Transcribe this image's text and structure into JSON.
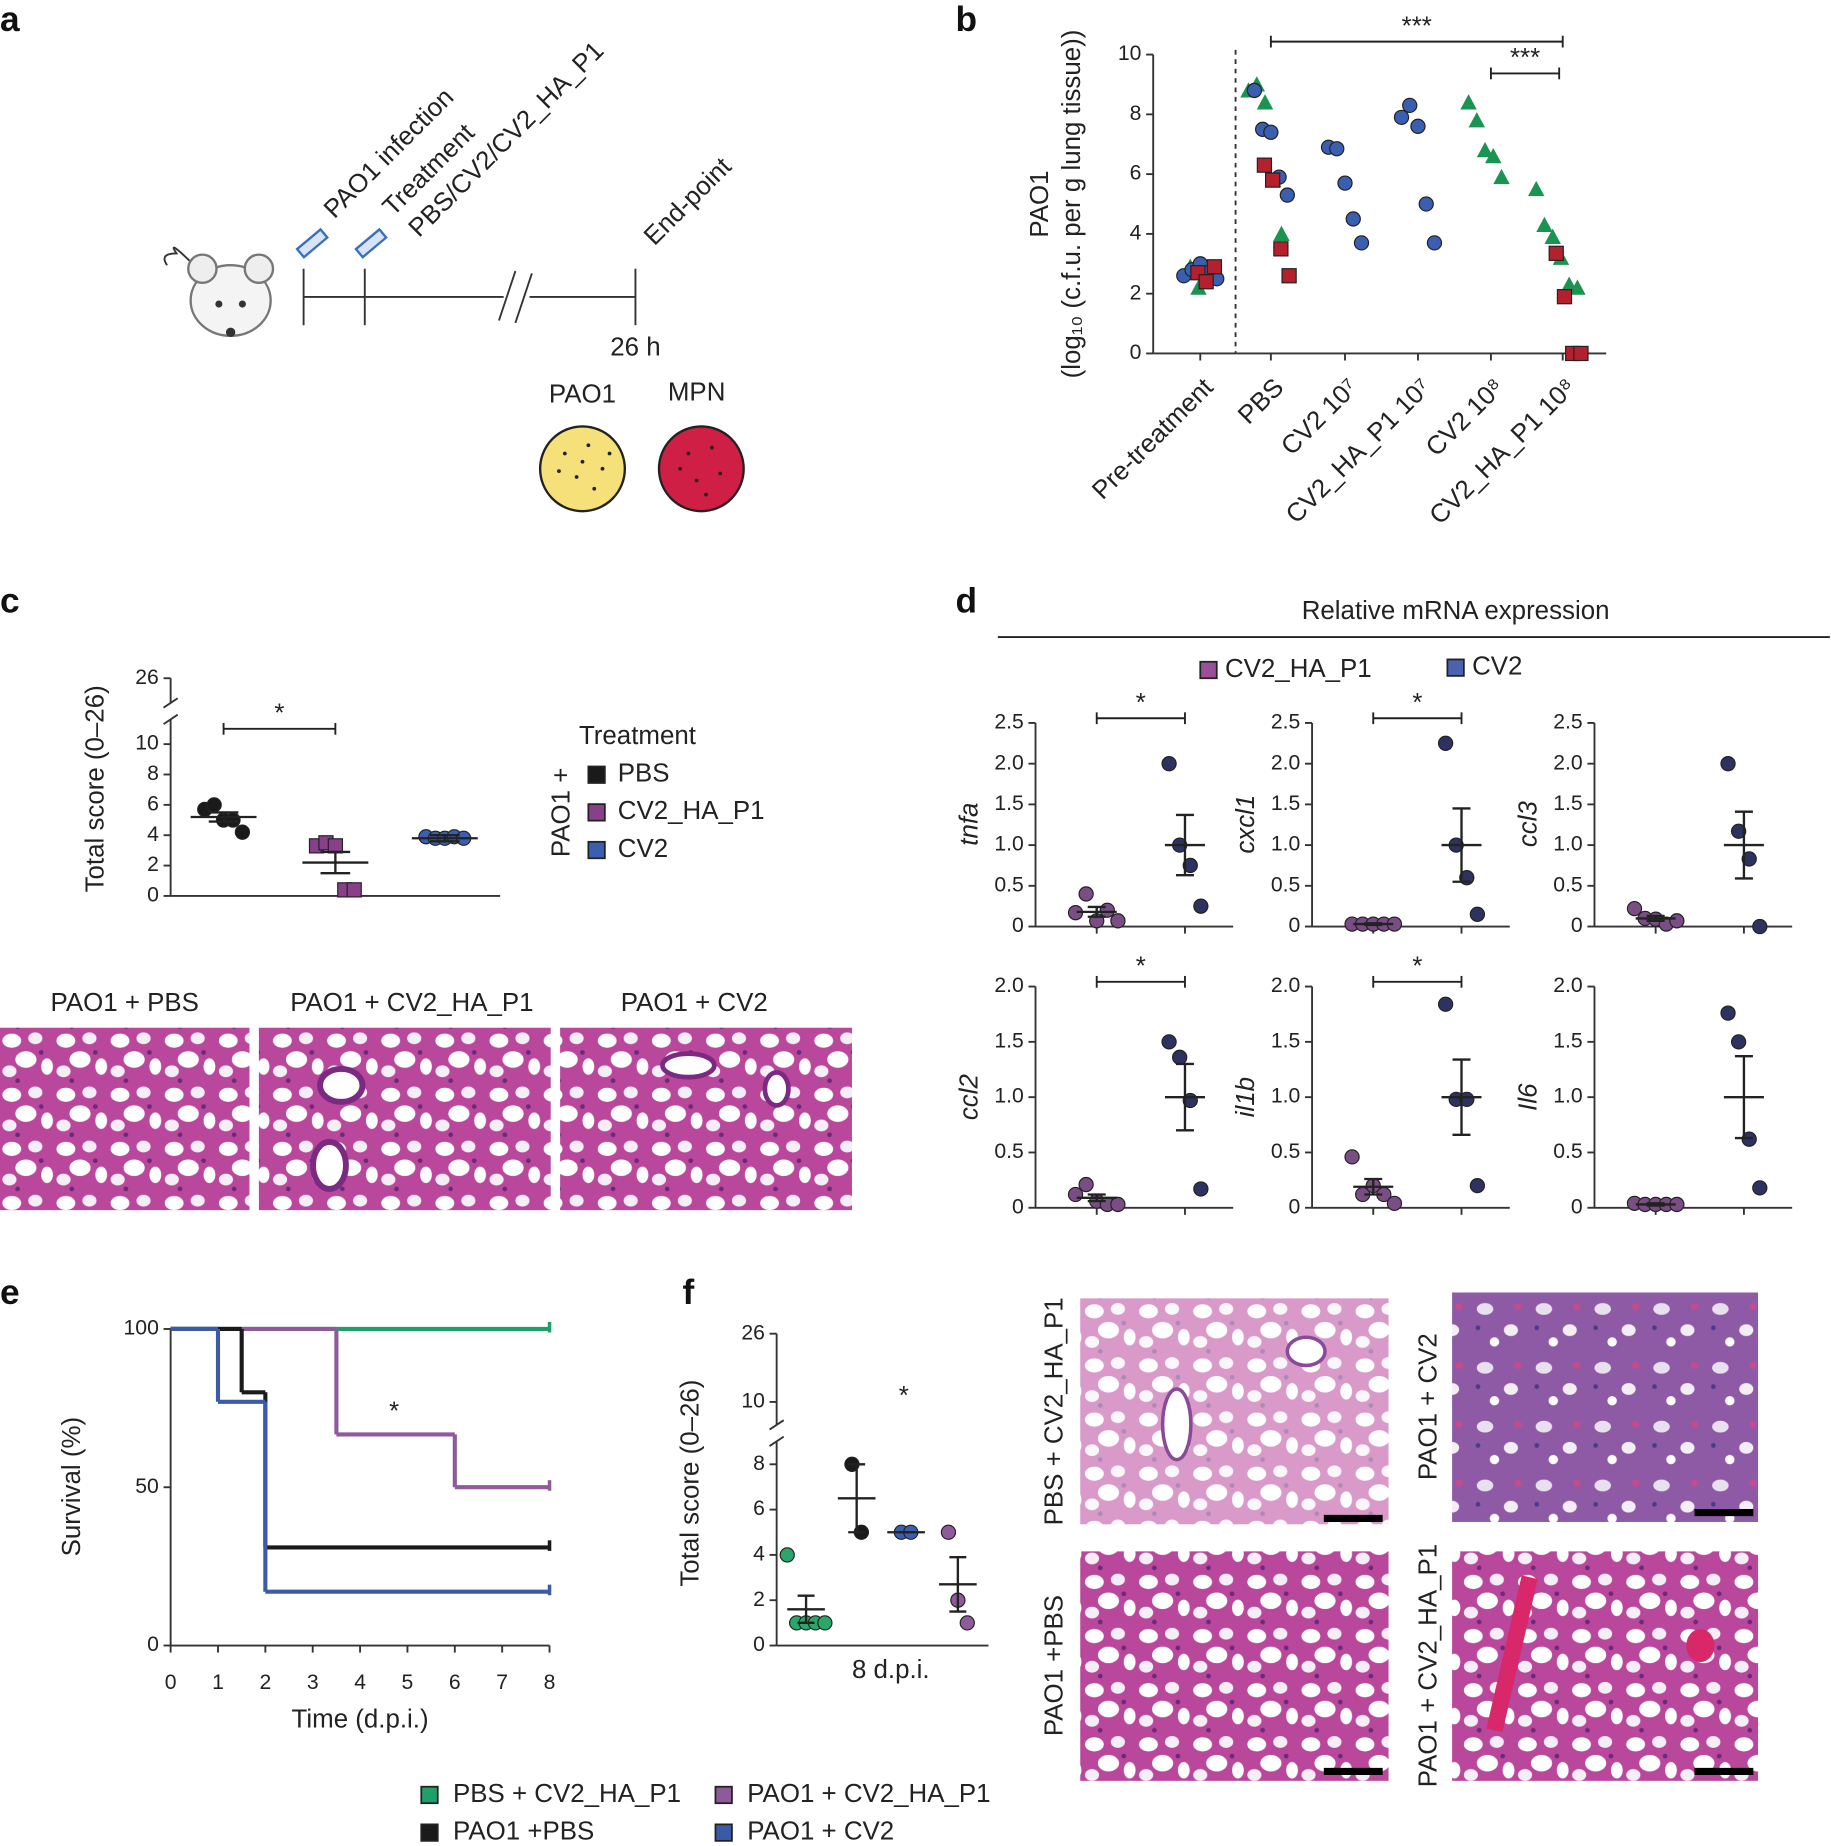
{
  "panel_labels": [
    "a",
    "b",
    "c",
    "d",
    "e",
    "f"
  ],
  "diagram": {
    "steps": [
      "PAO1 infection",
      "Treatment",
      "PBS/CV2/CV2_HA_P1",
      "End-point"
    ],
    "time": "26 h",
    "plates": [
      "PAO1",
      "MPN"
    ]
  },
  "micrographs_c": [
    "PAO1 + PBS",
    "PAO1 + CV2_HA_P1",
    "PAO1 + CV2"
  ],
  "micrographs_f": [
    "PBS + CV2_HA_P1",
    "PAO1 + CV2",
    "PAO1 +PBS",
    "PAO1 + CV2_HA_P1"
  ],
  "panel_d": {
    "title": "Relative mRNA expression",
    "legend": [
      {
        "name": "CV2_HA_P1",
        "color": "#9b4f96"
      },
      {
        "name": "CV2",
        "color": "#4b62ad"
      }
    ]
  },
  "chart_data": [
    {
      "type": "strip",
      "ylabel": [
        "PAO1",
        "(log₁₀ (c.f.u. per g lung tissue))"
      ],
      "categories": [
        "Pre-treatment",
        "PBS",
        "CV2 10⁷",
        "CV2_HA_P1 10⁷",
        "CV2 10⁸",
        "CV2_HA_P1 10⁸"
      ],
      "ylim": [
        0,
        10
      ],
      "yticks": [
        0,
        2,
        4,
        6,
        8,
        10
      ],
      "series": [
        {
          "color": "#1a9450",
          "marker": "triangle",
          "values": [
            [
              2.9,
              2.2
            ],
            [
              8.8,
              9.0,
              8.4,
              5.8,
              4.0
            ],
            [],
            [],
            [
              8.4,
              7.8,
              6.8,
              6.6,
              5.9
            ],
            [
              5.5,
              4.3,
              3.9,
              3.2,
              2.3,
              2.2
            ]
          ]
        },
        {
          "color": "#3a5fb0",
          "marker": "circle",
          "values": [
            [
              2.6,
              2.8,
              3.0,
              2.7,
              2.5
            ],
            [
              8.8,
              7.5,
              7.4,
              5.9,
              5.3
            ],
            [
              6.9,
              6.85,
              5.7,
              4.5,
              3.7
            ],
            [
              7.9,
              8.3,
              7.6,
              5.0,
              3.7
            ],
            [],
            []
          ]
        },
        {
          "color": "#b5202e",
          "marker": "square",
          "values": [
            [
              2.7,
              2.4,
              2.9
            ],
            [
              6.3,
              5.8,
              3.5,
              2.6
            ],
            [],
            [],
            [],
            [
              3.35,
              1.9,
              0,
              0
            ]
          ]
        }
      ],
      "annotations": [
        "***",
        "***"
      ]
    },
    {
      "type": "dot",
      "ylabel": "Total score (0–26)",
      "ylim": [
        0,
        26
      ],
      "axis_break": [
        10,
        26
      ],
      "yticks": [
        0,
        2,
        4,
        6,
        8,
        10,
        26
      ],
      "legend_title": "Treatment",
      "legend_prefix": "PAO1 +",
      "series": [
        {
          "name": "PBS",
          "color": "#1a1a1a",
          "marker": "circle",
          "values": [
            5.7,
            6.0,
            5.0,
            5.0,
            4.2
          ],
          "mean": 5.2,
          "sem": 0.3
        },
        {
          "name": "CV2_HA_P1",
          "color": "#8a3f8a",
          "marker": "square",
          "values": [
            3.3,
            3.5,
            3.3,
            0.4,
            0.4
          ],
          "mean": 2.2,
          "sem": 0.7
        },
        {
          "name": "CV2",
          "color": "#3a5fb0",
          "marker": "circle",
          "values": [
            3.9,
            3.8,
            3.8,
            3.9,
            3.8
          ],
          "mean": 3.8,
          "sem": 0.2
        }
      ],
      "annotations": [
        "*"
      ]
    },
    {
      "type": "dot",
      "ylabel": "tnfa",
      "ylim": [
        0,
        2.5
      ],
      "yticks": [
        0,
        0.5,
        {
          "value": 1,
          "label": "1.0"
        },
        1.5,
        {
          "value": 2,
          "label": "2.0"
        },
        2.5
      ],
      "series": [
        {
          "color": "#7a4e84",
          "marker": "circle",
          "values": [
            0.17,
            0.4,
            0.07,
            0.2,
            0.07
          ],
          "mean": 0.18,
          "sem": 0.06
        },
        {
          "color": "#2e3260",
          "marker": "circle",
          "values": [
            2.0,
            1.0,
            0.75,
            0.25
          ],
          "mean": 1.0,
          "sem": 0.37
        }
      ],
      "annotations": [
        "*"
      ]
    },
    {
      "type": "dot",
      "ylabel": "cxcl1",
      "ylim": [
        0,
        2.5
      ],
      "yticks": [
        0,
        0.5,
        {
          "value": 1,
          "label": "1.0"
        },
        1.5,
        {
          "value": 2,
          "label": "2.0"
        },
        2.5
      ],
      "series": [
        {
          "color": "#7a4e84",
          "marker": "circle",
          "values": [
            0.03,
            0.03,
            0.03,
            0.03,
            0.03
          ],
          "mean": 0.03,
          "sem": 0.01
        },
        {
          "color": "#2e3260",
          "marker": "circle",
          "values": [
            2.25,
            1.0,
            0.6,
            0.15
          ],
          "mean": 1.0,
          "sem": 0.45
        }
      ],
      "annotations": [
        "*"
      ]
    },
    {
      "type": "dot",
      "ylabel": "ccl3",
      "ylim": [
        0,
        2.5
      ],
      "yticks": [
        0,
        0.5,
        {
          "value": 1,
          "label": "1.0"
        },
        1.5,
        {
          "value": 2,
          "label": "2.0"
        },
        2.5
      ],
      "series": [
        {
          "color": "#7a4e84",
          "marker": "circle",
          "values": [
            0.22,
            0.1,
            0.09,
            0.03,
            0.07
          ],
          "mean": 0.1,
          "sem": 0.03
        },
        {
          "color": "#2e3260",
          "marker": "circle",
          "values": [
            2.0,
            1.17,
            0.83,
            0.0
          ],
          "mean": 1.0,
          "sem": 0.41
        }
      ]
    },
    {
      "type": "dot",
      "ylabel": "ccl2",
      "ylim": [
        0,
        2
      ],
      "yticks": [
        0,
        0.5,
        {
          "value": 1,
          "label": "1.0"
        },
        1.5,
        {
          "value": 2,
          "label": "2.0"
        }
      ],
      "series": [
        {
          "color": "#7a4e84",
          "marker": "circle",
          "values": [
            0.12,
            0.21,
            0.06,
            0.03,
            0.03
          ],
          "mean": 0.09,
          "sem": 0.03
        },
        {
          "color": "#2e3260",
          "marker": "circle",
          "values": [
            1.5,
            1.36,
            0.97,
            0.17
          ],
          "mean": 1.0,
          "sem": 0.3
        }
      ],
      "annotations": [
        "*"
      ]
    },
    {
      "type": "dot",
      "ylabel": "il1b",
      "ylim": [
        0,
        2
      ],
      "yticks": [
        0,
        0.5,
        {
          "value": 1,
          "label": "1.0"
        },
        1.5,
        {
          "value": 2,
          "label": "2.0"
        }
      ],
      "series": [
        {
          "color": "#7a4e84",
          "marker": "circle",
          "values": [
            0.46,
            0.12,
            0.2,
            0.12,
            0.04
          ],
          "mean": 0.19,
          "sem": 0.07
        },
        {
          "color": "#2e3260",
          "marker": "circle",
          "values": [
            1.84,
            0.98,
            0.98,
            0.2
          ],
          "mean": 1.0,
          "sem": 0.34
        }
      ],
      "annotations": [
        "*"
      ]
    },
    {
      "type": "dot",
      "ylabel": "Il6",
      "ylim": [
        0,
        2
      ],
      "yticks": [
        0,
        0.5,
        {
          "value": 1,
          "label": "1.0"
        },
        1.5,
        {
          "value": 2,
          "label": "2.0"
        }
      ],
      "series": [
        {
          "color": "#7a4e84",
          "marker": "circle",
          "values": [
            0.04,
            0.03,
            0.03,
            0.03,
            0.03
          ],
          "mean": 0.03,
          "sem": 0.01
        },
        {
          "color": "#2e3260",
          "marker": "circle",
          "values": [
            1.76,
            1.5,
            0.62,
            0.18
          ],
          "mean": 1.0,
          "sem": 0.37
        }
      ]
    },
    {
      "type": "step",
      "xlabel": "Time (d.p.i.)",
      "ylabel": "Survival (%)",
      "xlim": [
        0,
        8
      ],
      "xticks": [
        0,
        1,
        2,
        3,
        4,
        5,
        6,
        7,
        8
      ],
      "ylim": [
        0,
        100
      ],
      "yticks": [
        0,
        50,
        100
      ],
      "series": [
        {
          "name": "PBS + CV2_HA_P1",
          "color": "#1fa06a",
          "x": [
            0,
            8
          ],
          "values": [
            100,
            100
          ]
        },
        {
          "name": "PAO1 + CV2_HA_P1",
          "color": "#8e5a9c",
          "x": [
            0,
            3.5,
            6,
            8
          ],
          "values": [
            100,
            66.7,
            50,
            50
          ]
        },
        {
          "name": "PAO1 +PBS",
          "color": "#1a1a1a",
          "x": [
            0,
            1.5,
            2,
            8
          ],
          "values": [
            100,
            80,
            31,
            31
          ]
        },
        {
          "name": "PAO1 + CV2",
          "color": "#3b5ba8",
          "x": [
            0,
            1,
            2,
            8
          ],
          "values": [
            100,
            77,
            17,
            17
          ]
        }
      ],
      "annotations": [
        "*"
      ]
    },
    {
      "type": "dot",
      "xlabel": "8 d.p.i.",
      "ylabel": "Total score (0–26)",
      "ylim": [
        0,
        26
      ],
      "axis_break": [
        8,
        10
      ],
      "yticks": [
        0,
        2,
        4,
        6,
        8,
        10,
        26
      ],
      "series": [
        {
          "color": "#2aa66a",
          "marker": "circle",
          "values": [
            4,
            1,
            1,
            1,
            1
          ],
          "mean": 1.6,
          "sem": 0.6
        },
        {
          "color": "#1a1a1a",
          "marker": "circle",
          "values": [
            8,
            5
          ],
          "mean": 6.5,
          "sem": 1.5
        },
        {
          "color": "#3a5fb0",
          "marker": "circle",
          "values": [
            5,
            5
          ],
          "mean": 5,
          "sem": 0
        },
        {
          "color": "#8e5a9c",
          "marker": "circle",
          "values": [
            5,
            2,
            1
          ],
          "mean": 2.7,
          "sem": 1.2
        }
      ],
      "annotations": [
        "*"
      ]
    }
  ]
}
